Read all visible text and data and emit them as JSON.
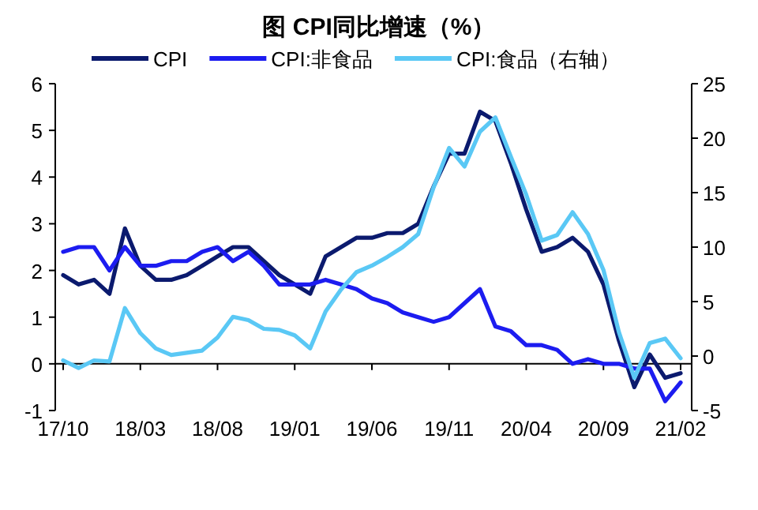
{
  "chart_data": {
    "type": "line",
    "title": "图  CPI同比增速（%）",
    "categories": [
      "17/10",
      null,
      null,
      null,
      null,
      "18/03",
      null,
      null,
      null,
      null,
      "18/08",
      null,
      null,
      null,
      null,
      "19/01",
      null,
      null,
      null,
      null,
      "19/06",
      null,
      null,
      null,
      null,
      "19/11",
      null,
      null,
      null,
      null,
      "20/04",
      null,
      null,
      null,
      null,
      "20/09",
      null,
      null,
      null,
      null,
      "21/02"
    ],
    "series": [
      {
        "name": "CPI",
        "color": "#0b1a6e",
        "values": [
          1.9,
          1.7,
          1.8,
          1.5,
          2.9,
          2.1,
          1.8,
          1.8,
          1.9,
          2.1,
          2.3,
          2.5,
          2.5,
          2.2,
          1.9,
          1.7,
          1.5,
          2.3,
          2.5,
          2.7,
          2.7,
          2.8,
          2.8,
          3.0,
          3.8,
          4.5,
          4.5,
          5.4,
          5.2,
          4.3,
          3.3,
          2.4,
          2.5,
          2.7,
          2.4,
          1.7,
          0.5,
          -0.5,
          0.2,
          -0.3,
          -0.2
        ]
      },
      {
        "name": "CPI:非食品",
        "color": "#1c1cf0",
        "values": [
          2.4,
          2.5,
          2.5,
          2.0,
          2.5,
          2.1,
          2.1,
          2.2,
          2.2,
          2.4,
          2.5,
          2.2,
          2.4,
          2.1,
          1.7,
          1.7,
          1.7,
          1.8,
          1.7,
          1.6,
          1.4,
          1.3,
          1.1,
          1.0,
          0.9,
          1.0,
          1.3,
          1.6,
          0.8,
          0.7,
          0.4,
          0.4,
          0.3,
          0.0,
          0.1,
          0.0,
          0.0,
          -0.1,
          -0.1,
          -0.8,
          -0.4
        ]
      },
      {
        "name": "CPI:食品（右轴）",
        "color": "#5ac8f5",
        "axis": "y2",
        "values": [
          -0.4,
          -1.1,
          -0.4,
          -0.5,
          4.4,
          2.1,
          0.7,
          0.1,
          0.3,
          0.5,
          1.7,
          3.6,
          3.3,
          2.5,
          2.4,
          1.9,
          0.7,
          4.1,
          6.1,
          7.7,
          8.3,
          9.1,
          10.0,
          11.2,
          15.5,
          19.1,
          17.4,
          20.6,
          21.9,
          18.3,
          14.8,
          10.6,
          11.1,
          13.2,
          11.2,
          7.9,
          2.2,
          -2.0,
          1.2,
          1.6,
          -0.2
        ]
      }
    ],
    "ylim": [
      -1,
      6
    ],
    "yticks": [
      -1,
      0,
      1,
      2,
      3,
      4,
      5,
      6
    ],
    "y2lim": [
      -5,
      25
    ],
    "y2ticks": [
      -5,
      0,
      5,
      10,
      15,
      20,
      25
    ],
    "legend": "top",
    "grid": false
  }
}
